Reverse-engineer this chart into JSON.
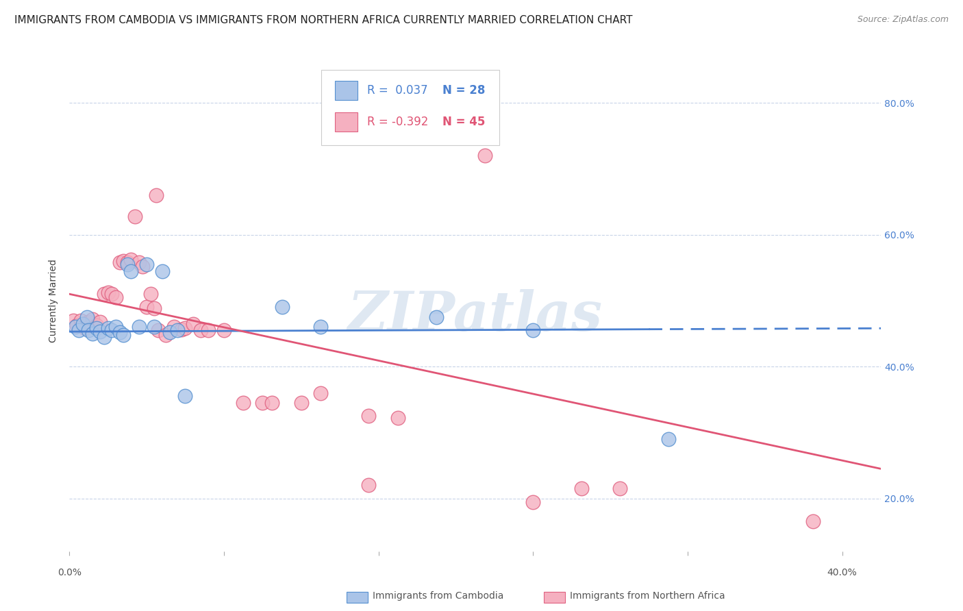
{
  "title": "IMMIGRANTS FROM CAMBODIA VS IMMIGRANTS FROM NORTHERN AFRICA CURRENTLY MARRIED CORRELATION CHART",
  "source": "Source: ZipAtlas.com",
  "ylabel": "Currently Married",
  "xlim": [
    0.0,
    0.42
  ],
  "ylim": [
    0.12,
    0.88
  ],
  "yticks": [
    0.2,
    0.4,
    0.6,
    0.8
  ],
  "ytick_labels": [
    "20.0%",
    "40.0%",
    "60.0%",
    "80.0%"
  ],
  "xtick_labels": [
    "0.0%",
    "",
    "",
    "",
    "",
    "40.0%"
  ],
  "xticks": [
    0.0,
    0.08,
    0.16,
    0.24,
    0.32,
    0.4
  ],
  "legend_blue_r": "R =  0.037",
  "legend_blue_n": "N = 28",
  "legend_pink_r": "R = -0.392",
  "legend_pink_n": "N = 45",
  "legend_label_blue": "Immigrants from Cambodia",
  "legend_label_pink": "Immigrants from Northern Africa",
  "blue_color": "#aac4e8",
  "pink_color": "#f5b0c0",
  "blue_edge_color": "#5590d0",
  "pink_edge_color": "#e06080",
  "blue_line_color": "#4a80d0",
  "pink_line_color": "#e05575",
  "label_color": "#4a80d0",
  "blue_scatter": [
    [
      0.003,
      0.46
    ],
    [
      0.005,
      0.455
    ],
    [
      0.007,
      0.465
    ],
    [
      0.009,
      0.475
    ],
    [
      0.01,
      0.455
    ],
    [
      0.012,
      0.45
    ],
    [
      0.014,
      0.458
    ],
    [
      0.016,
      0.453
    ],
    [
      0.018,
      0.445
    ],
    [
      0.02,
      0.458
    ],
    [
      0.022,
      0.455
    ],
    [
      0.024,
      0.46
    ],
    [
      0.026,
      0.452
    ],
    [
      0.028,
      0.448
    ],
    [
      0.03,
      0.555
    ],
    [
      0.032,
      0.545
    ],
    [
      0.036,
      0.46
    ],
    [
      0.04,
      0.555
    ],
    [
      0.044,
      0.46
    ],
    [
      0.048,
      0.545
    ],
    [
      0.052,
      0.452
    ],
    [
      0.056,
      0.455
    ],
    [
      0.06,
      0.355
    ],
    [
      0.11,
      0.49
    ],
    [
      0.13,
      0.46
    ],
    [
      0.19,
      0.475
    ],
    [
      0.24,
      0.455
    ],
    [
      0.31,
      0.29
    ]
  ],
  "pink_scatter": [
    [
      0.002,
      0.47
    ],
    [
      0.004,
      0.462
    ],
    [
      0.006,
      0.47
    ],
    [
      0.008,
      0.458
    ],
    [
      0.01,
      0.468
    ],
    [
      0.012,
      0.472
    ],
    [
      0.014,
      0.462
    ],
    [
      0.016,
      0.468
    ],
    [
      0.018,
      0.51
    ],
    [
      0.02,
      0.512
    ],
    [
      0.022,
      0.51
    ],
    [
      0.024,
      0.505
    ],
    [
      0.026,
      0.558
    ],
    [
      0.028,
      0.56
    ],
    [
      0.03,
      0.558
    ],
    [
      0.032,
      0.562
    ],
    [
      0.034,
      0.628
    ],
    [
      0.036,
      0.558
    ],
    [
      0.038,
      0.552
    ],
    [
      0.04,
      0.49
    ],
    [
      0.042,
      0.51
    ],
    [
      0.044,
      0.488
    ],
    [
      0.046,
      0.455
    ],
    [
      0.05,
      0.448
    ],
    [
      0.054,
      0.46
    ],
    [
      0.058,
      0.456
    ],
    [
      0.06,
      0.458
    ],
    [
      0.064,
      0.465
    ],
    [
      0.068,
      0.455
    ],
    [
      0.072,
      0.455
    ],
    [
      0.08,
      0.455
    ],
    [
      0.09,
      0.345
    ],
    [
      0.1,
      0.345
    ],
    [
      0.105,
      0.345
    ],
    [
      0.12,
      0.345
    ],
    [
      0.13,
      0.36
    ],
    [
      0.155,
      0.325
    ],
    [
      0.17,
      0.322
    ],
    [
      0.215,
      0.72
    ],
    [
      0.155,
      0.22
    ],
    [
      0.24,
      0.195
    ],
    [
      0.265,
      0.215
    ],
    [
      0.285,
      0.215
    ],
    [
      0.385,
      0.165
    ],
    [
      0.045,
      0.66
    ]
  ],
  "blue_trendline": [
    [
      0.0,
      0.453
    ],
    [
      0.42,
      0.458
    ]
  ],
  "pink_trendline": [
    [
      0.0,
      0.51
    ],
    [
      0.42,
      0.245
    ]
  ],
  "watermark": "ZIPatlas",
  "background_color": "#ffffff",
  "grid_color": "#c8d4e8",
  "title_fontsize": 11,
  "axis_fontsize": 10,
  "tick_fontsize": 10
}
